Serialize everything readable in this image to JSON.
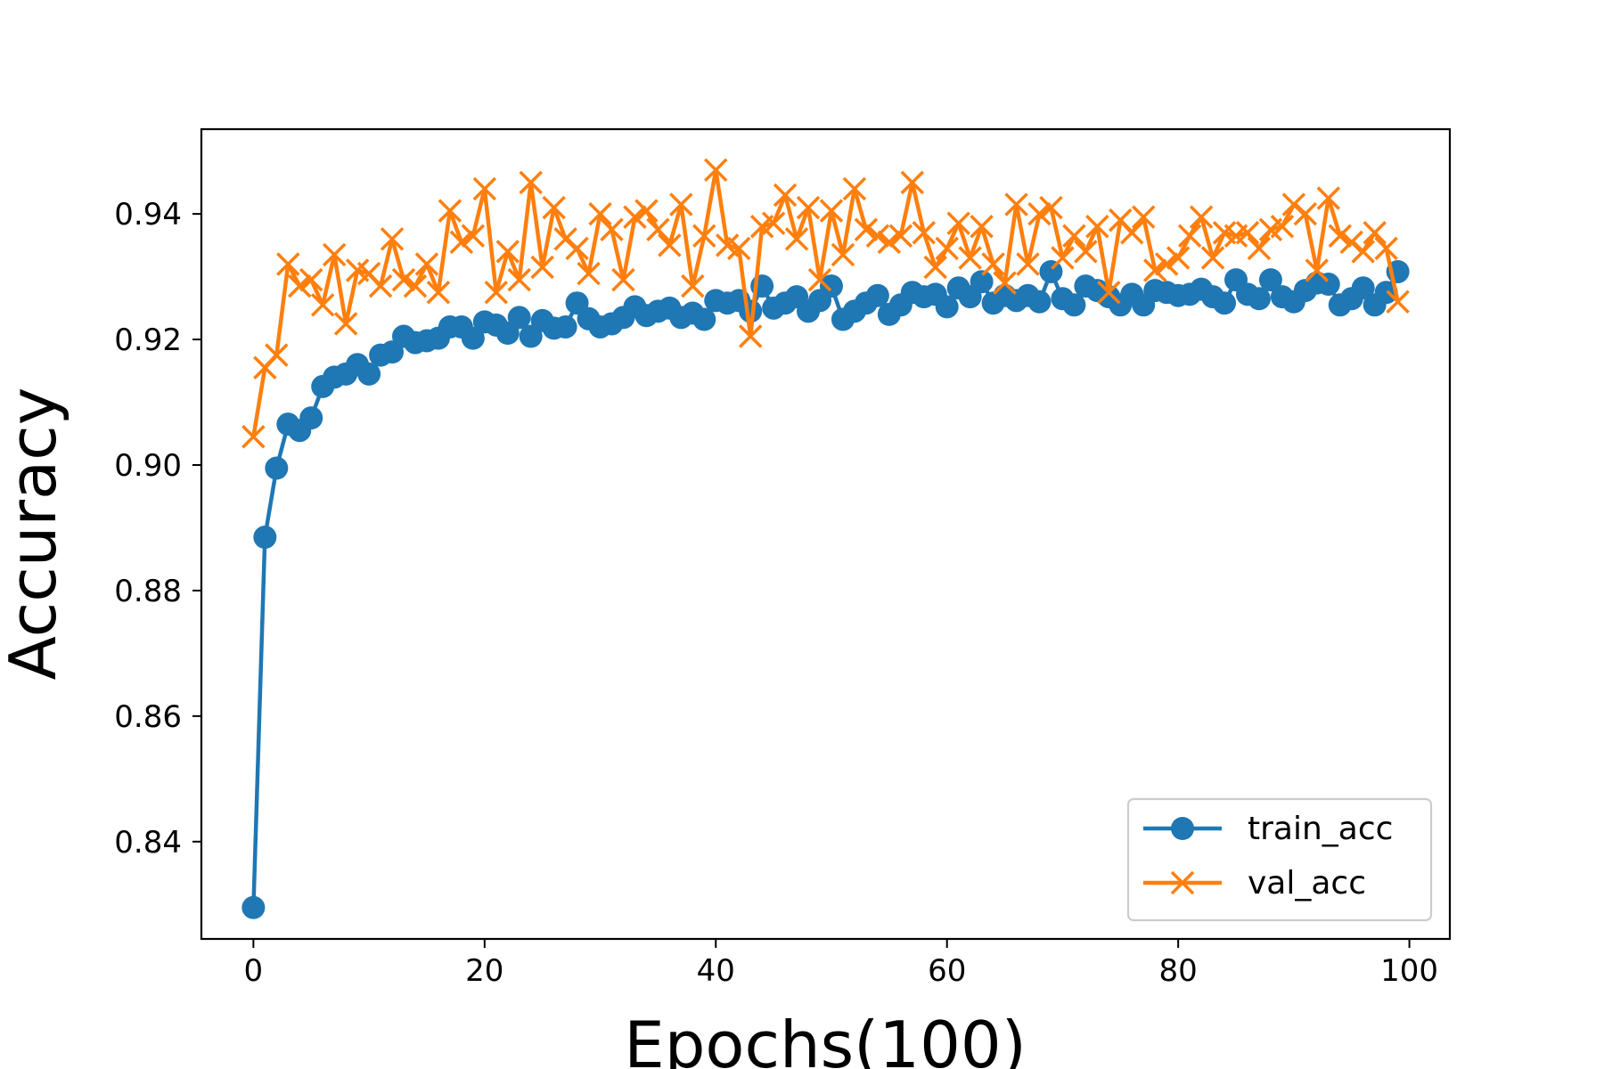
{
  "chart_data": {
    "type": "line",
    "title": "",
    "xlabel": "Epochs(100)",
    "ylabel": "Accuracy",
    "xlim": [
      -4.5,
      103.5
    ],
    "ylim": [
      0.8245,
      0.9535
    ],
    "xticks": [
      0,
      20,
      40,
      60,
      80,
      100
    ],
    "yticks": [
      0.84,
      0.86,
      0.88,
      0.9,
      0.92,
      0.94
    ],
    "xtick_labels": [
      "0",
      "20",
      "40",
      "60",
      "80",
      "100"
    ],
    "ytick_labels": [
      "0.84",
      "0.86",
      "0.88",
      "0.90",
      "0.92",
      "0.94"
    ],
    "grid": false,
    "legend_position": "lower-right",
    "series": [
      {
        "name": "train_acc",
        "color": "#1f77b4",
        "marker": "circle",
        "x": [
          0,
          1,
          2,
          3,
          4,
          5,
          6,
          7,
          8,
          9,
          10,
          11,
          12,
          13,
          14,
          15,
          16,
          17,
          18,
          19,
          20,
          21,
          22,
          23,
          24,
          25,
          26,
          27,
          28,
          29,
          30,
          31,
          32,
          33,
          34,
          35,
          36,
          37,
          38,
          39,
          40,
          41,
          42,
          43,
          44,
          45,
          46,
          47,
          48,
          49,
          50,
          51,
          52,
          53,
          54,
          55,
          56,
          57,
          58,
          59,
          60,
          61,
          62,
          63,
          64,
          65,
          66,
          67,
          68,
          69,
          70,
          71,
          72,
          73,
          74,
          75,
          76,
          77,
          78,
          79,
          80,
          81,
          82,
          83,
          84,
          85,
          86,
          87,
          88,
          89,
          90,
          91,
          92,
          93,
          94,
          95,
          96,
          97,
          98,
          99
        ],
        "values": [
          0.8295,
          0.8885,
          0.8995,
          0.9065,
          0.9055,
          0.9075,
          0.9125,
          0.914,
          0.9145,
          0.916,
          0.9145,
          0.9175,
          0.918,
          0.9205,
          0.9195,
          0.9198,
          0.9202,
          0.922,
          0.922,
          0.9202,
          0.9228,
          0.9223,
          0.921,
          0.9235,
          0.9205,
          0.923,
          0.9218,
          0.922,
          0.9258,
          0.9233,
          0.922,
          0.9225,
          0.9235,
          0.9252,
          0.9238,
          0.9245,
          0.925,
          0.9235,
          0.9242,
          0.9232,
          0.9262,
          0.9258,
          0.9262,
          0.9245,
          0.9285,
          0.925,
          0.9258,
          0.9268,
          0.9245,
          0.9262,
          0.9285,
          0.9232,
          0.9245,
          0.9258,
          0.927,
          0.924,
          0.9255,
          0.9275,
          0.9268,
          0.9272,
          0.9252,
          0.9282,
          0.9268,
          0.9292,
          0.9258,
          0.927,
          0.9262,
          0.927,
          0.926,
          0.9308,
          0.9265,
          0.9255,
          0.9285,
          0.9278,
          0.9268,
          0.9255,
          0.9272,
          0.9255,
          0.9278,
          0.9275,
          0.927,
          0.9272,
          0.928,
          0.9268,
          0.9258,
          0.9295,
          0.9272,
          0.9265,
          0.9295,
          0.9268,
          0.926,
          0.9278,
          0.929,
          0.9288,
          0.9255,
          0.9265,
          0.9282,
          0.9255,
          0.9275,
          0.9308
        ]
      },
      {
        "name": "val_acc",
        "color": "#ff7f0e",
        "marker": "x",
        "x": [
          0,
          1,
          2,
          3,
          4,
          5,
          6,
          7,
          8,
          9,
          10,
          11,
          12,
          13,
          14,
          15,
          16,
          17,
          18,
          19,
          20,
          21,
          22,
          23,
          24,
          25,
          26,
          27,
          28,
          29,
          30,
          31,
          32,
          33,
          34,
          35,
          36,
          37,
          38,
          39,
          40,
          41,
          42,
          43,
          44,
          45,
          46,
          47,
          48,
          49,
          50,
          51,
          52,
          53,
          54,
          55,
          56,
          57,
          58,
          59,
          60,
          61,
          62,
          63,
          64,
          65,
          66,
          67,
          68,
          69,
          70,
          71,
          72,
          73,
          74,
          75,
          76,
          77,
          78,
          79,
          80,
          81,
          82,
          83,
          84,
          85,
          86,
          87,
          88,
          89,
          90,
          91,
          92,
          93,
          94,
          95,
          96,
          97,
          98,
          99
        ],
        "values": [
          0.9045,
          0.9155,
          0.9175,
          0.932,
          0.9285,
          0.9295,
          0.9255,
          0.9335,
          0.9225,
          0.931,
          0.9305,
          0.9285,
          0.936,
          0.9295,
          0.9285,
          0.932,
          0.9275,
          0.9405,
          0.9355,
          0.9365,
          0.944,
          0.9275,
          0.934,
          0.9295,
          0.945,
          0.9315,
          0.941,
          0.936,
          0.9345,
          0.9305,
          0.94,
          0.9375,
          0.9295,
          0.9395,
          0.9405,
          0.9375,
          0.935,
          0.9415,
          0.9285,
          0.9365,
          0.947,
          0.935,
          0.9345,
          0.9205,
          0.938,
          0.9385,
          0.943,
          0.936,
          0.941,
          0.9295,
          0.9405,
          0.9335,
          0.944,
          0.9375,
          0.9365,
          0.9355,
          0.9365,
          0.945,
          0.937,
          0.9315,
          0.9345,
          0.9385,
          0.933,
          0.938,
          0.932,
          0.929,
          0.9415,
          0.932,
          0.94,
          0.941,
          0.933,
          0.9365,
          0.934,
          0.938,
          0.9275,
          0.939,
          0.937,
          0.9395,
          0.931,
          0.932,
          0.933,
          0.9365,
          0.9395,
          0.933,
          0.937,
          0.9365,
          0.937,
          0.9345,
          0.9375,
          0.938,
          0.9415,
          0.94,
          0.931,
          0.9425,
          0.9365,
          0.9355,
          0.934,
          0.937,
          0.9345,
          0.926
        ]
      }
    ]
  }
}
